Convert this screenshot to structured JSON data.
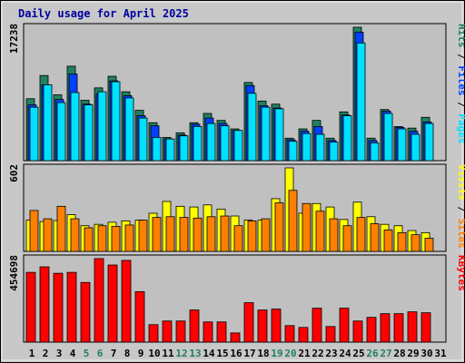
{
  "chart_data": {
    "type": "bar",
    "title": "Daily usage for April 2025",
    "days": [
      "1",
      "2",
      "3",
      "4",
      "5",
      "6",
      "7",
      "8",
      "9",
      "10",
      "11",
      "12",
      "13",
      "14",
      "15",
      "16",
      "17",
      "18",
      "19",
      "20",
      "21",
      "22",
      "23",
      "24",
      "25",
      "26",
      "27",
      "28",
      "29",
      "30",
      "31"
    ],
    "weekend_days": [
      "5",
      "6",
      "12",
      "13",
      "19",
      "20",
      "26",
      "27"
    ],
    "colors": {
      "title": "#0000a0",
      "day_label": "#000000",
      "weekend_label": "#208060",
      "panel_bg": "#c0c0c0",
      "frame_bg": "#c8c8c8",
      "hits": "#208060",
      "files": "#0040ff",
      "pages": "#00e0ff",
      "visits": "#ffff00",
      "sites": "#ff8000",
      "kbytes": "#ff0000"
    },
    "panels": [
      {
        "id": "hits",
        "max_label": "17238",
        "ymax": 17238,
        "legend": [
          {
            "text": "Pages",
            "color": "#00e0ff"
          },
          {
            "text": " / ",
            "color": "#000000"
          },
          {
            "text": "Files",
            "color": "#0040ff"
          },
          {
            "text": " / ",
            "color": "#000000"
          },
          {
            "text": "Hits",
            "color": "#208060"
          }
        ],
        "series": [
          {
            "name": "Hits",
            "color": "#208060",
            "values": [
              8000,
              11000,
              8500,
              12200,
              7800,
              9400,
              10900,
              8900,
              6500,
              4900,
              3000,
              3600,
              4900,
              6100,
              5200,
              4100,
              10100,
              7700,
              7300,
              2900,
              4100,
              5200,
              2900,
              6300,
              17238,
              2900,
              6600,
              4400,
              4200,
              5600,
              0
            ]
          },
          {
            "name": "Files",
            "color": "#0040ff",
            "values": [
              7200,
              9800,
              7900,
              11200,
              7300,
              8600,
              10300,
              8400,
              5800,
              4500,
              2800,
              3300,
              4700,
              5500,
              4800,
              3900,
              9700,
              7100,
              6800,
              2700,
              3800,
              4400,
              2600,
              5900,
              16600,
              2600,
              6400,
              4300,
              3800,
              5000,
              0
            ]
          },
          {
            "name": "Pages",
            "color": "#00e0ff",
            "values": [
              6900,
              9800,
              7500,
              8800,
              7200,
              8900,
              10200,
              8100,
              5500,
              3000,
              2800,
              3200,
              4400,
              4800,
              4500,
              3900,
              8700,
              6900,
              6700,
              2500,
              3500,
              3400,
              2400,
              5800,
              15200,
              2300,
              6100,
              4100,
              3400,
              4800,
              0
            ]
          }
        ]
      },
      {
        "id": "visits",
        "max_label": "602",
        "ymax": 602,
        "legend": [
          {
            "text": "Sites",
            "color": "#ff8000"
          },
          {
            "text": " / ",
            "color": "#000000"
          },
          {
            "text": "Visits",
            "color": "#ffff00"
          }
        ],
        "series": [
          {
            "name": "Visits",
            "color": "#ffff00",
            "values": [
              225,
              215,
              222,
              265,
              185,
              195,
              210,
              220,
              225,
              275,
              360,
              325,
              320,
              335,
              305,
              255,
              225,
              225,
              380,
              602,
              275,
              345,
              320,
              230,
              355,
              250,
              195,
              185,
              150,
              135,
              0
            ]
          },
          {
            "name": "Sites",
            "color": "#ff8000",
            "values": [
              295,
              235,
              325,
              235,
              170,
              185,
              180,
              190,
              225,
              245,
              250,
              245,
              240,
              250,
              255,
              185,
              220,
              235,
              350,
              440,
              345,
              290,
              235,
              185,
              245,
              200,
              155,
              135,
              120,
              95,
              0
            ]
          }
        ]
      },
      {
        "id": "kbytes",
        "max_label": "454698",
        "ymax": 454698,
        "legend": [
          {
            "text": "KBytes",
            "color": "#ff0000"
          }
        ],
        "series": [
          {
            "name": "KBytes",
            "color": "#ff0000",
            "values": [
              380000,
              410000,
              375000,
              380000,
              325000,
              455000,
              420000,
              445000,
              275000,
              95000,
              115000,
              115000,
              175000,
              110000,
              110000,
              50000,
              215000,
              175000,
              180000,
              90000,
              80000,
              185000,
              85000,
              185000,
              115000,
              135000,
              155000,
              155000,
              165000,
              160000,
              0
            ]
          }
        ]
      }
    ]
  }
}
